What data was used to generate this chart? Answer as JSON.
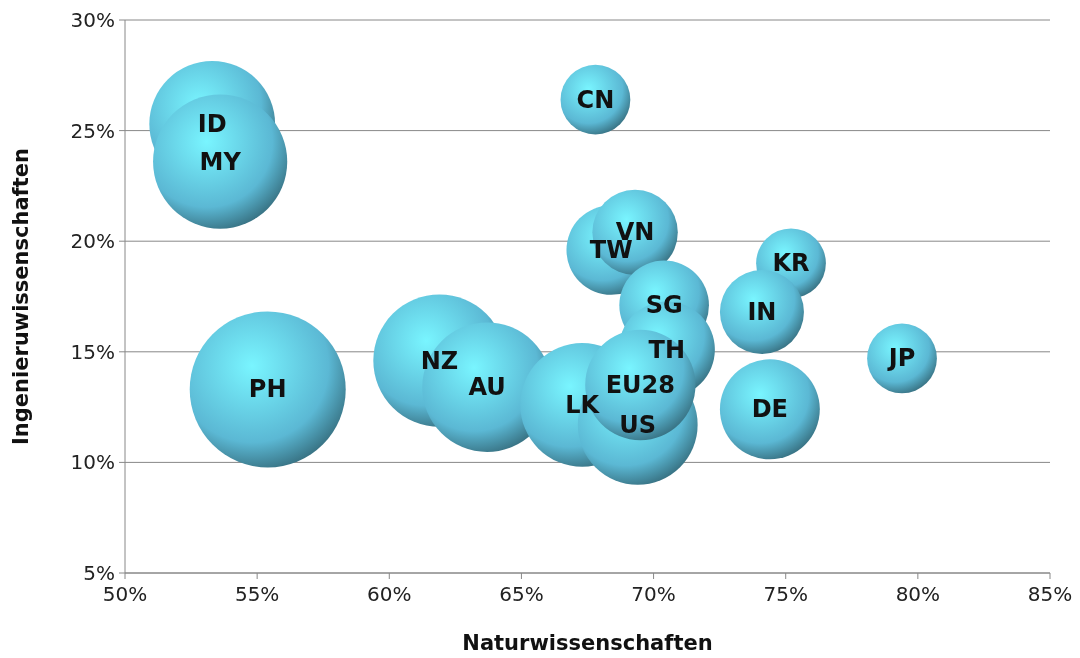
{
  "chart_data": {
    "type": "bubble",
    "xlabel": "Naturwissenschaften",
    "ylabel": "Ingenieruwissenschaften",
    "xlim": [
      50,
      85
    ],
    "ylim": [
      5,
      30
    ],
    "xticks": [
      {
        "value": 50,
        "label": "50%"
      },
      {
        "value": 55,
        "label": "55%"
      },
      {
        "value": 60,
        "label": "60%"
      },
      {
        "value": 65,
        "label": "65%"
      },
      {
        "value": 70,
        "label": "70%"
      },
      {
        "value": 75,
        "label": "75%"
      },
      {
        "value": 80,
        "label": "80%"
      },
      {
        "value": 85,
        "label": "85%"
      }
    ],
    "yticks": [
      {
        "value": 5,
        "label": "5%"
      },
      {
        "value": 10,
        "label": "10%"
      },
      {
        "value": 15,
        "label": "15%"
      },
      {
        "value": 20,
        "label": "20%"
      },
      {
        "value": 25,
        "label": "25%"
      },
      {
        "value": 30,
        "label": "30%"
      }
    ],
    "grid": "y",
    "series": [
      {
        "name": "ID",
        "color": "#5bb8d4",
        "x": [
          53.3
        ],
        "values": [
          25.3
        ],
        "sizes": [
          0.65
        ]
      },
      {
        "name": "MY",
        "color": "#5bb8d4",
        "x": [
          53.6
        ],
        "values": [
          23.6
        ],
        "sizes": [
          0.74
        ]
      },
      {
        "name": "CN",
        "color": "#5bb8d4",
        "x": [
          67.8
        ],
        "values": [
          26.4
        ],
        "sizes": [
          0.2
        ]
      },
      {
        "name": "PH",
        "color": "#5bb8d4",
        "x": [
          55.4
        ],
        "values": [
          13.3
        ],
        "sizes": [
          1
        ]
      },
      {
        "name": "NZ",
        "color": "#5bb8d4",
        "x": [
          61.9
        ],
        "values": [
          14.6
        ],
        "sizes": [
          0.72
        ]
      },
      {
        "name": "AU",
        "color": "#5bb8d4",
        "x": [
          63.7
        ],
        "values": [
          13.4
        ],
        "sizes": [
          0.69
        ]
      },
      {
        "name": "LK",
        "color": "#5bb8d4",
        "x": [
          67.3
        ],
        "values": [
          12.6
        ],
        "sizes": [
          0.63
        ]
      },
      {
        "name": "TW",
        "color": "#5bb8d4",
        "x": [
          68.4
        ],
        "values": [
          19.6
        ],
        "sizes": [
          0.33
        ]
      },
      {
        "name": "VN",
        "color": "#5bb8d4",
        "x": [
          69.3
        ],
        "values": [
          20.4
        ],
        "sizes": [
          0.3
        ]
      },
      {
        "name": "SG",
        "color": "#5bb8d4",
        "x": [
          70.4
        ],
        "values": [
          17.1
        ],
        "sizes": [
          0.33
        ]
      },
      {
        "name": "TH",
        "color": "#5bb8d4",
        "x": [
          70.5
        ],
        "values": [
          15.1
        ],
        "sizes": [
          0.38
        ]
      },
      {
        "name": "US",
        "color": "#5bb8d4",
        "x": [
          69.4
        ],
        "values": [
          11.7
        ],
        "sizes": [
          0.59
        ]
      },
      {
        "name": "EU28",
        "color": "#5bb8d4",
        "x": [
          69.5
        ],
        "values": [
          13.5
        ],
        "sizes": [
          0.5
        ]
      },
      {
        "name": "KR",
        "color": "#5bb8d4",
        "x": [
          75.2
        ],
        "values": [
          19.0
        ],
        "sizes": [
          0.2
        ]
      },
      {
        "name": "IN",
        "color": "#5bb8d4",
        "x": [
          74.1
        ],
        "values": [
          16.8
        ],
        "sizes": [
          0.29
        ]
      },
      {
        "name": "DE",
        "color": "#5bb8d4",
        "x": [
          74.4
        ],
        "values": [
          12.4
        ],
        "sizes": [
          0.41
        ]
      },
      {
        "name": "JP",
        "color": "#5bb8d4",
        "x": [
          79.4
        ],
        "values": [
          14.7
        ],
        "sizes": [
          0.2
        ]
      }
    ]
  }
}
